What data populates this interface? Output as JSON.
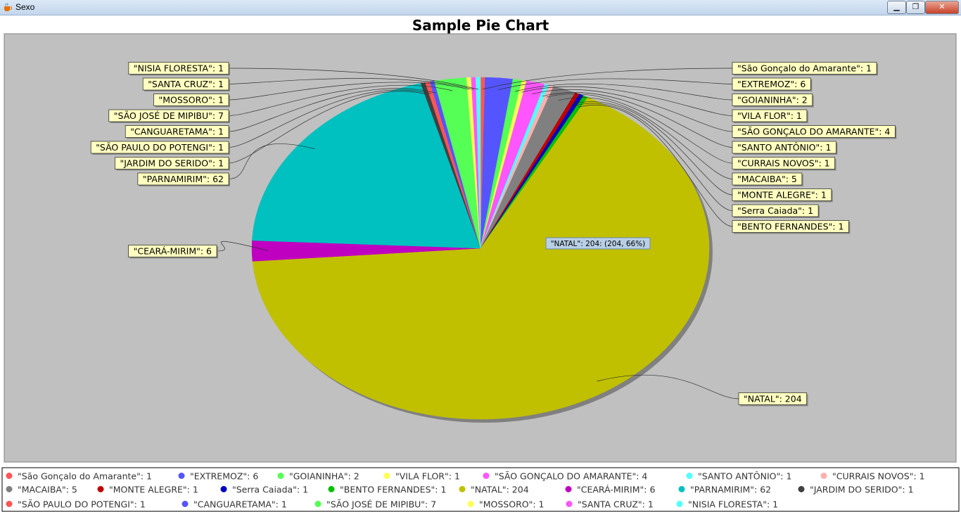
{
  "window": {
    "title": "Sexo",
    "minimize_glyph": "▁",
    "maximize_glyph": "❐",
    "close_glyph": "✕",
    "icon": "java-cup-icon"
  },
  "chart_data": {
    "type": "pie",
    "title": "Sample Pie Chart",
    "style": "3d-shadowed",
    "background": "#c0c0c0",
    "legend_position": "bottom",
    "slices": [
      {
        "label": "\"São Gonçalo do Amarante\"",
        "value": 1,
        "color": "#ff5555"
      },
      {
        "label": "\"EXTREMOZ\"",
        "value": 6,
        "color": "#5555ff"
      },
      {
        "label": "\"GOIANINHA\"",
        "value": 2,
        "color": "#55ff55"
      },
      {
        "label": "\"VILA FLOR\"",
        "value": 1,
        "color": "#ffff55"
      },
      {
        "label": "\"SÃO GONÇALO DO AMARANTE\"",
        "value": 4,
        "color": "#ff55ff"
      },
      {
        "label": "\"SANTO ANTÔNIO\"",
        "value": 1,
        "color": "#55ffff"
      },
      {
        "label": "\"CURRAIS NOVOS\"",
        "value": 1,
        "color": "#ffafaf"
      },
      {
        "label": "\"MACAIBA\"",
        "value": 5,
        "color": "#808080"
      },
      {
        "label": "\"MONTE ALEGRE\"",
        "value": 1,
        "color": "#c00000"
      },
      {
        "label": "\"Serra Caiada\"",
        "value": 1,
        "color": "#0000c0"
      },
      {
        "label": "\"BENTO FERNANDES\"",
        "value": 1,
        "color": "#00c000"
      },
      {
        "label": "\"NATAL\"",
        "value": 204,
        "color": "#c0c000"
      },
      {
        "label": "\"CEARÁ-MIRIM\"",
        "value": 6,
        "color": "#c000c0"
      },
      {
        "label": "\"PARNAMIRIM\"",
        "value": 62,
        "color": "#00c0c0"
      },
      {
        "label": "\"JARDIM DO SERIDO\"",
        "value": 1,
        "color": "#404040"
      },
      {
        "label": "\"SÃO PAULO DO POTENGI\"",
        "value": 1,
        "color": "#ff5555"
      },
      {
        "label": "\"CANGUARETAMA\"",
        "value": 1,
        "color": "#5555ff"
      },
      {
        "label": "\"SÃO JOSÉ DE MIPIBU\"",
        "value": 7,
        "color": "#55ff55"
      },
      {
        "label": "\"MOSSORO\"",
        "value": 1,
        "color": "#ffff55"
      },
      {
        "label": "\"SANTA CRUZ\"",
        "value": 1,
        "color": "#ff55ff"
      },
      {
        "label": "\"NISIA FLORESTA\"",
        "value": 1,
        "color": "#55ffff"
      }
    ],
    "tooltip": "\"NATAL\": 204: (204, 66%)"
  }
}
